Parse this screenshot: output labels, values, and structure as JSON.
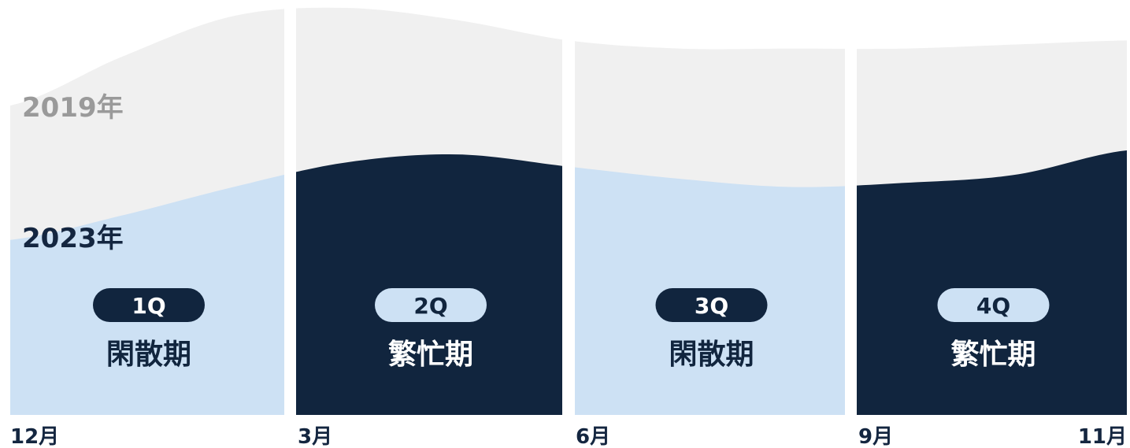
{
  "colors": {
    "series_2019_fill": "#f0f0f0",
    "light_quarter_fill": "#cde1f4",
    "dark_quarter_fill": "#11253e",
    "series_2019_label": "#9a9a9a",
    "series_2023_label": "#142640",
    "axis_text": "#142640",
    "background": "#ffffff"
  },
  "chart_data": {
    "type": "area",
    "title": "",
    "xlabel": "",
    "ylabel": "",
    "x_ticks": [
      "12月",
      "3月",
      "6月",
      "9月",
      "11月"
    ],
    "series": [
      {
        "name": "2019年",
        "values": [
          76,
          88,
          98,
          100,
          97,
          92,
          90,
          90,
          90,
          91,
          92
        ]
      },
      {
        "name": "2023年",
        "values": [
          43,
          49,
          56,
          62,
          64,
          61,
          58,
          56,
          57,
          59,
          65
        ]
      }
    ],
    "ylim": [
      0,
      100
    ],
    "grid": false,
    "quarters": [
      {
        "label": "1Q",
        "season": "閑散期",
        "tone": "light"
      },
      {
        "label": "2Q",
        "season": "繁忙期",
        "tone": "dark"
      },
      {
        "label": "3Q",
        "season": "閑散期",
        "tone": "light"
      },
      {
        "label": "4Q",
        "season": "繁忙期",
        "tone": "dark"
      }
    ]
  }
}
